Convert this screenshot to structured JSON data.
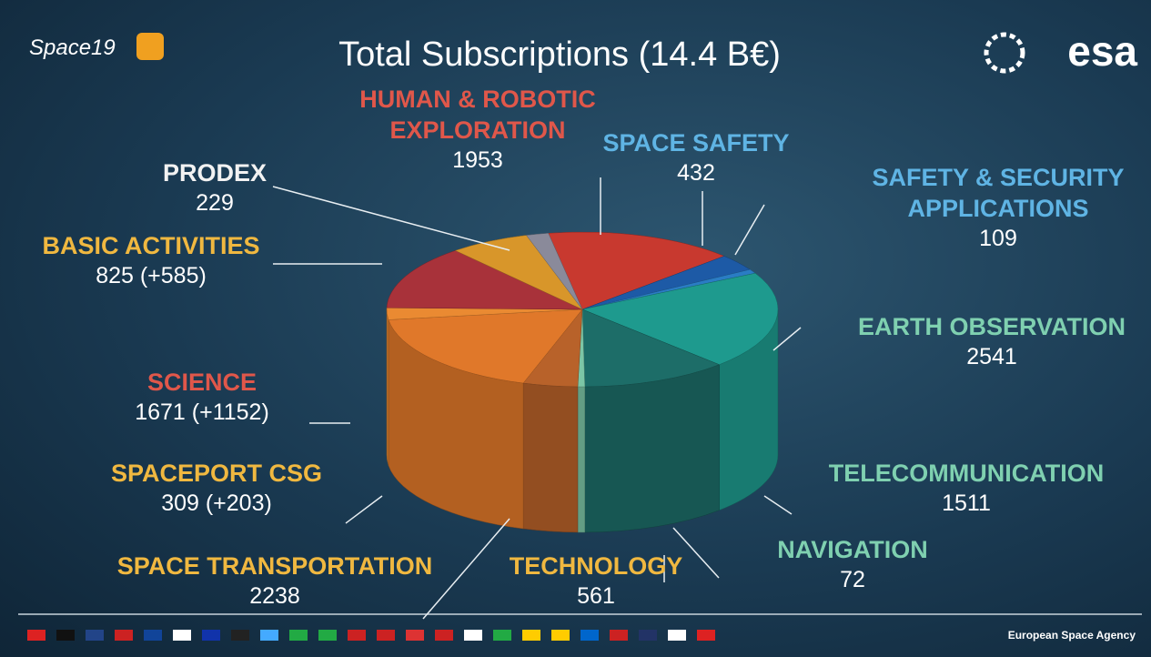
{
  "logo_left": "Space19",
  "logo_right": "esa",
  "footer": "European Space Agency",
  "chart_data": {
    "type": "pie",
    "title": "Total Subscriptions (14.4 B€)",
    "categories": [
      "HUMAN & ROBOTIC EXPLORATION",
      "SPACE SAFETY",
      "SAFETY & SECURITY APPLICATIONS",
      "EARTH OBSERVATION",
      "TELECOMMUNICATION",
      "NAVIGATION",
      "TECHNOLOGY",
      "SPACE TRANSPORTATION",
      "SPACEPORT CSG",
      "SCIENCE",
      "BASIC ACTIVITIES",
      "PRODEX"
    ],
    "values": [
      1953,
      432,
      109,
      2541,
      1511,
      72,
      561,
      2238,
      309,
      1671,
      825,
      229
    ],
    "value_labels": [
      "1953",
      "432",
      "109",
      "2541",
      "1511",
      "72",
      "561",
      "2238",
      "309 (+203)",
      "1671 (+1152)",
      "825 (+585)",
      "229"
    ],
    "colors": [
      "#c8392f",
      "#1d5aa6",
      "#2a7cc4",
      "#1e9a8e",
      "#1d6d68",
      "#7cc6a6",
      "#b8622a",
      "#e0782a",
      "#ea8a32",
      "#a8323a",
      "#d8962a",
      "#8a8a9a"
    ],
    "label_colors": [
      "#e0574a",
      "#5fb4e4",
      "#5fb4e4",
      "#7fd0b0",
      "#7fd0b0",
      "#7fd0b0",
      "#f0b840",
      "#f0b840",
      "#f0b840",
      "#e0574a",
      "#f0b840",
      "#f2f2f2"
    ]
  }
}
